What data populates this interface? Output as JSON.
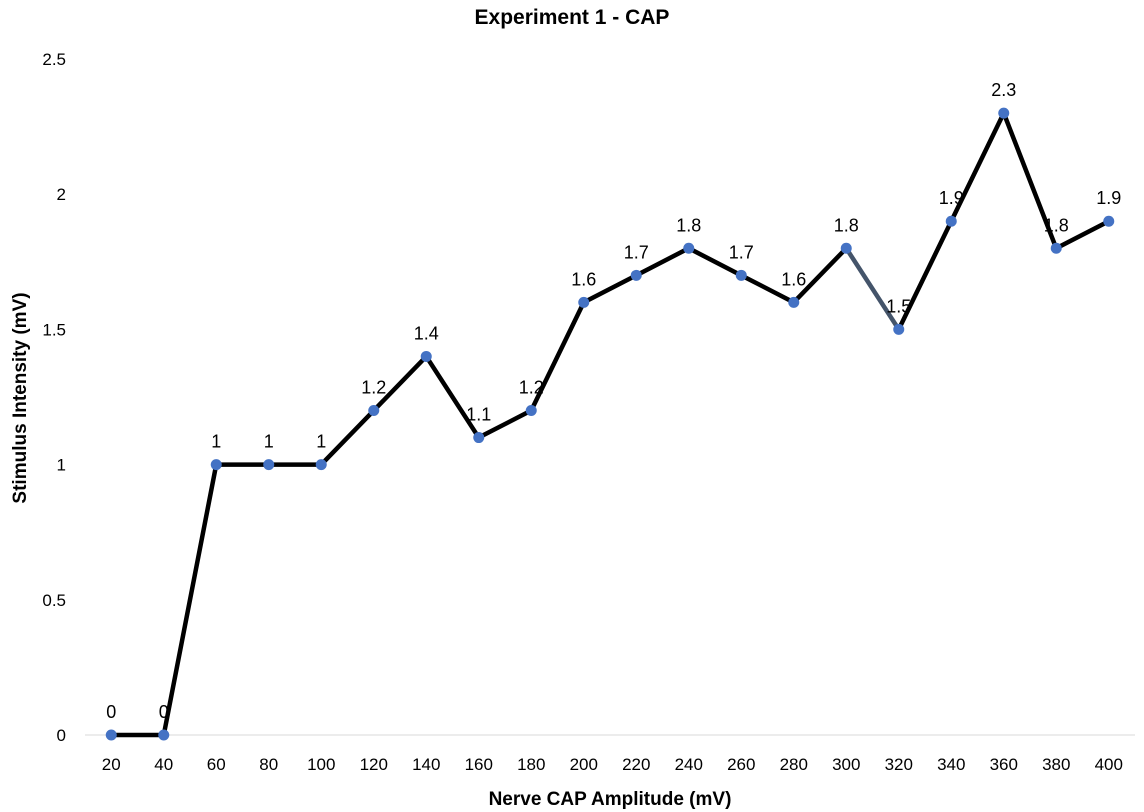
{
  "chart_data": {
    "type": "line",
    "title": "Experiment 1 - CAP",
    "xlabel": "Nerve CAP Amplitude (mV)",
    "ylabel": "Stimulus Intensity (mV)",
    "x": [
      20,
      40,
      60,
      80,
      100,
      120,
      140,
      160,
      180,
      200,
      220,
      240,
      260,
      280,
      300,
      320,
      340,
      360,
      380,
      400
    ],
    "series": [
      {
        "values": [
          0,
          0,
          1,
          1,
          1,
          1.2,
          1.4,
          1.1,
          1.2,
          1.6,
          1.7,
          1.8,
          1.7,
          1.6,
          1.8,
          1.5,
          1.9,
          2.3,
          1.8,
          1.9
        ]
      }
    ],
    "y_ticks": [
      0,
      0.5,
      1,
      1.5,
      2,
      2.5
    ],
    "ylim": [
      0,
      2.5
    ],
    "grid": false,
    "legend": "none",
    "line_color": "#000000",
    "highlight_segment_color": "#44546A",
    "marker_color": "#4472C4"
  }
}
